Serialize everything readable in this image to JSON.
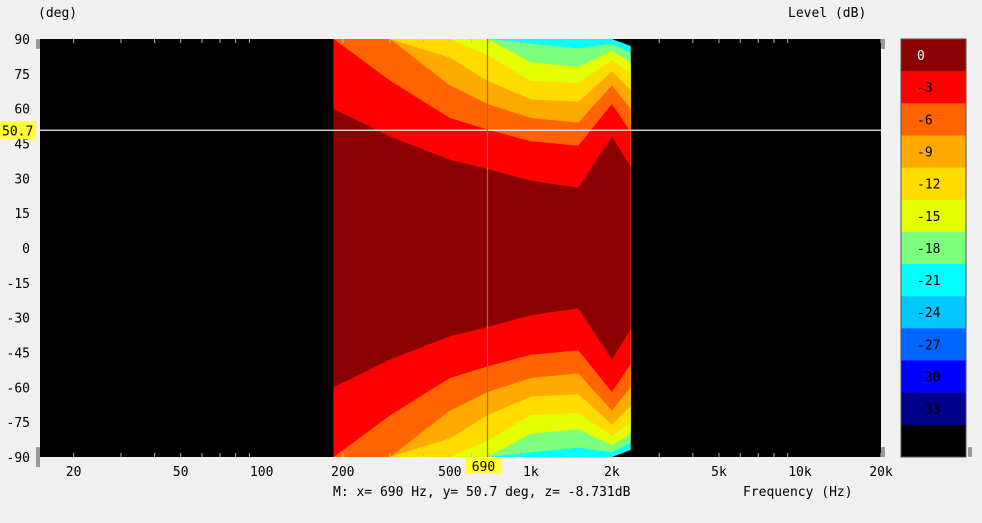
{
  "chart_data": {
    "type": "heatmap",
    "ylabel": "(deg)",
    "legend_title": "Level  (dB)",
    "xlabel": "Frequency  (Hz)",
    "x_scale": "log",
    "xlim": [
      15,
      20000
    ],
    "ylim": [
      -90,
      90
    ],
    "x_ticks": [
      "20",
      "50",
      "100",
      "200",
      "500",
      "1k",
      "2k",
      "5k",
      "10k",
      "20k"
    ],
    "x_tick_values": [
      20,
      50,
      100,
      200,
      500,
      1000,
      2000,
      5000,
      10000,
      20000
    ],
    "y_ticks": [
      90,
      75,
      60,
      45,
      30,
      15,
      0,
      -15,
      -30,
      -45,
      -60,
      -75,
      -90
    ],
    "data_range_hz": [
      185,
      2350
    ],
    "color_scale": [
      {
        "label": "0",
        "color": "#8b0000"
      },
      {
        "label": "-3",
        "color": "#ff0000"
      },
      {
        "label": "-6",
        "color": "#ff6400"
      },
      {
        "label": "-9",
        "color": "#ffaa00"
      },
      {
        "label": "-12",
        "color": "#ffdc00"
      },
      {
        "label": "-15",
        "color": "#e6ff00"
      },
      {
        "label": "-18",
        "color": "#7cff7c"
      },
      {
        "label": "-21",
        "color": "#00ffff"
      },
      {
        "label": "-24",
        "color": "#00c8ff"
      },
      {
        "label": "-27",
        "color": "#0064ff"
      },
      {
        "label": "-30",
        "color": "#0000ff"
      },
      {
        "label": "-33",
        "color": "#00008c"
      },
      {
        "label": "",
        "color": "#000000"
      }
    ],
    "contours_deg": {
      "freqs": [
        185,
        300,
        500,
        690,
        1000,
        1500,
        2000,
        2350
      ],
      "levels": [
        [
          60,
          48,
          38,
          34,
          29,
          26,
          48,
          35
        ],
        [
          90,
          72,
          56,
          51,
          46,
          44,
          62,
          50
        ],
        [
          90,
          90,
          70,
          62,
          56,
          54,
          70,
          60
        ],
        [
          90,
          90,
          82,
          72,
          64,
          63,
          76,
          68
        ],
        [
          90,
          90,
          90,
          83,
          72,
          71,
          81,
          75
        ],
        [
          90,
          90,
          90,
          90,
          80,
          78,
          85,
          80
        ],
        [
          90,
          90,
          90,
          90,
          88,
          86,
          88,
          84
        ],
        [
          90,
          90,
          90,
          90,
          90,
          90,
          90,
          87
        ]
      ]
    },
    "cursor": {
      "x": 690,
      "y": 50.7,
      "x_label": "690",
      "y_label": "50.7"
    }
  },
  "readout": "M:  x= 690 Hz,  y= 50.7 deg, z= -8.731dB"
}
